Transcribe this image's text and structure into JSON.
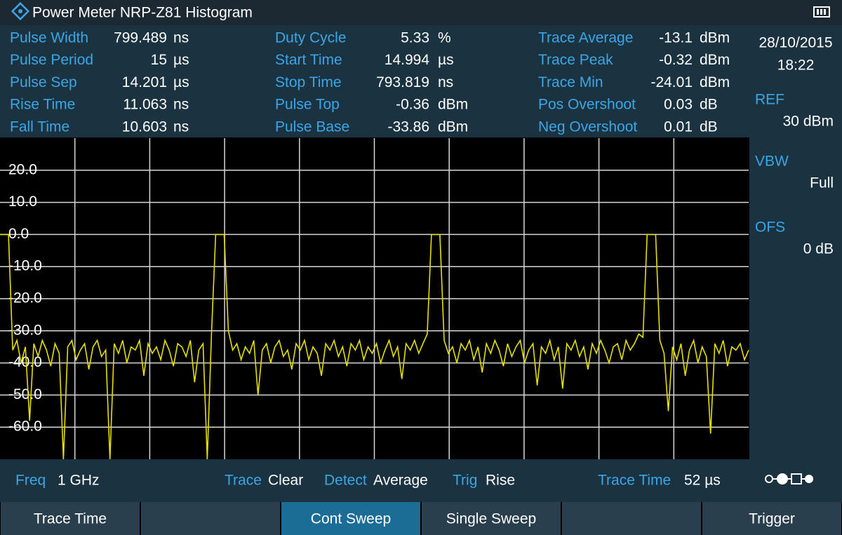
{
  "header": {
    "title": "Power Meter NRP-Z81 Histogram"
  },
  "measurements": [
    [
      {
        "label": "Pulse Width",
        "value": "799.489",
        "unit": "ns"
      },
      {
        "label": "Pulse Period",
        "value": "15",
        "unit": "µs"
      },
      {
        "label": "Pulse Sep",
        "value": "14.201",
        "unit": "µs"
      },
      {
        "label": "Rise Time",
        "value": "11.063",
        "unit": "ns"
      },
      {
        "label": "Fall Time",
        "value": "10.603",
        "unit": "ns"
      }
    ],
    [
      {
        "label": "Duty Cycle",
        "value": "5.33",
        "unit": "%"
      },
      {
        "label": "Start Time",
        "value": "14.994",
        "unit": "µs"
      },
      {
        "label": "Stop Time",
        "value": "793.819",
        "unit": "ns"
      },
      {
        "label": "Pulse Top",
        "value": "-0.36",
        "unit": "dBm"
      },
      {
        "label": "Pulse Base",
        "value": "-33.86",
        "unit": "dBm"
      }
    ],
    [
      {
        "label": "Trace Average",
        "value": "-13.1",
        "unit": "dBm"
      },
      {
        "label": "Trace Peak",
        "value": "-0.32",
        "unit": "dBm"
      },
      {
        "label": "Trace Min",
        "value": "-24.01",
        "unit": "dBm"
      },
      {
        "label": "Pos Overshoot",
        "value": "0.03",
        "unit": "dB"
      },
      {
        "label": "Neg Overshoot",
        "value": "0.01",
        "unit": "dB"
      }
    ]
  ],
  "side_panel": {
    "date": "28/10/2015",
    "time": "18:22",
    "ref_label": "REF",
    "ref_value": "30 dBm",
    "vbw_label": "VBW",
    "vbw_value": "Full",
    "ofs_label": "OFS",
    "ofs_value": "0 dB"
  },
  "chart_data": {
    "type": "line",
    "color": "#e6e000",
    "grid": true,
    "ylim": [
      -70,
      30
    ],
    "yticks": [
      {
        "value": 20,
        "label": "20.0"
      },
      {
        "value": 10,
        "label": "10.0"
      },
      {
        "value": 0,
        "label": "0.0"
      },
      {
        "value": -10,
        "label": "-10.0"
      },
      {
        "value": -20,
        "label": "-20.0"
      },
      {
        "value": -30,
        "label": "-30.0"
      },
      {
        "value": -40,
        "label": "-40.0"
      },
      {
        "value": -50,
        "label": "-50.0"
      },
      {
        "value": -60,
        "label": "-60.0"
      }
    ],
    "values": [
      0,
      0,
      0,
      -36,
      -33,
      -40,
      -35,
      -58,
      -34,
      -38,
      -33,
      -36,
      -41,
      -34,
      -37,
      -70,
      -35,
      -33,
      -39,
      -36,
      -34,
      -42,
      -35,
      -33,
      -38,
      -36,
      -70,
      -34,
      -37,
      -33,
      -40,
      -35,
      -36,
      -33,
      -44,
      -34,
      -37,
      -35,
      -39,
      -33,
      -36,
      -41,
      -34,
      -35,
      -38,
      -33,
      -46,
      -36,
      -34,
      -70,
      -31,
      0,
      0,
      0,
      -30,
      -36,
      -34,
      -39,
      -35,
      -37,
      -33,
      -50,
      -36,
      -34,
      -40,
      -35,
      -33,
      -38,
      -36,
      -42,
      -34,
      -36,
      -33,
      -39,
      -35,
      -37,
      -44,
      -34,
      -36,
      -33,
      -38,
      -35,
      -41,
      -34,
      -36,
      -33,
      -39,
      -35,
      -37,
      -34,
      -40,
      -36,
      -33,
      -38,
      -35,
      -45,
      -34,
      -36,
      -33,
      -37,
      -34,
      -31,
      0,
      0,
      0,
      -33,
      -37,
      -35,
      -40,
      -34,
      -36,
      -33,
      -39,
      -35,
      -43,
      -34,
      -37,
      -33,
      -36,
      -41,
      -34,
      -38,
      -35,
      -33,
      -40,
      -36,
      -34,
      -47,
      -35,
      -37,
      -33,
      -39,
      -35,
      -48,
      -34,
      -36,
      -33,
      -38,
      -35,
      -42,
      -34,
      -37,
      -33,
      -36,
      -40,
      -35,
      -34,
      -39,
      -33,
      -36,
      -34,
      -31,
      -32,
      0,
      0,
      0,
      -33,
      -37,
      -55,
      -35,
      -39,
      -34,
      -44,
      -36,
      -33,
      -40,
      -35,
      -38,
      -62,
      -34,
      -37,
      -33,
      -41,
      -35,
      -36,
      -34,
      -39,
      -36
    ]
  },
  "status_bar": [
    {
      "label": "Freq",
      "value": "1 GHz"
    },
    {
      "label": "Trace",
      "value": "Clear"
    },
    {
      "label": "Detect",
      "value": "Average"
    },
    {
      "label": "Trig",
      "value": "Rise"
    },
    {
      "label": "Trace Time",
      "value": "52 µs"
    }
  ],
  "softkeys": [
    "Trace Time",
    "Cont Sweep",
    "Single Sweep",
    "Trigger"
  ]
}
